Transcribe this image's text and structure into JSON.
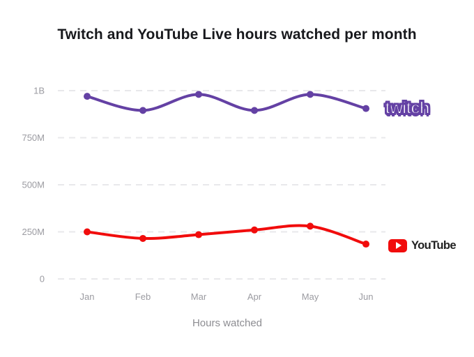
{
  "title": "Twitch and YouTube Live hours watched per month",
  "chart_data": {
    "type": "line",
    "categories": [
      "Jan",
      "Feb",
      "Mar",
      "Apr",
      "May",
      "Jun"
    ],
    "series": [
      {
        "name": "Twitch",
        "color": "#6441a4",
        "values": [
          970,
          895,
          980,
          895,
          980,
          905
        ]
      },
      {
        "name": "YouTube",
        "color": "#f10c0c",
        "values": [
          250,
          215,
          235,
          260,
          280,
          185
        ]
      }
    ],
    "values_unit": "M",
    "ylim": [
      0,
      1000
    ],
    "yticks": [
      {
        "value": 0,
        "label": "0"
      },
      {
        "value": 250,
        "label": "250M"
      },
      {
        "value": 500,
        "label": "500M"
      },
      {
        "value": 750,
        "label": "750M"
      },
      {
        "value": 1000,
        "label": "1B"
      }
    ],
    "xlabel": "Hours watched",
    "grid": "dashed horizontal",
    "legend_position": "logo labels right of line ends"
  },
  "logos": {
    "twitch": {
      "label": "twitch",
      "color": "#6441a4"
    },
    "youtube": {
      "label": "YouTube",
      "brand_red": "#f10c0c",
      "text_color": "#212121"
    }
  },
  "colors": {
    "background": "#ffffff",
    "grid": "#e8e8eb",
    "axis_text": "#9b9ba1",
    "title_text": "#17181c"
  }
}
